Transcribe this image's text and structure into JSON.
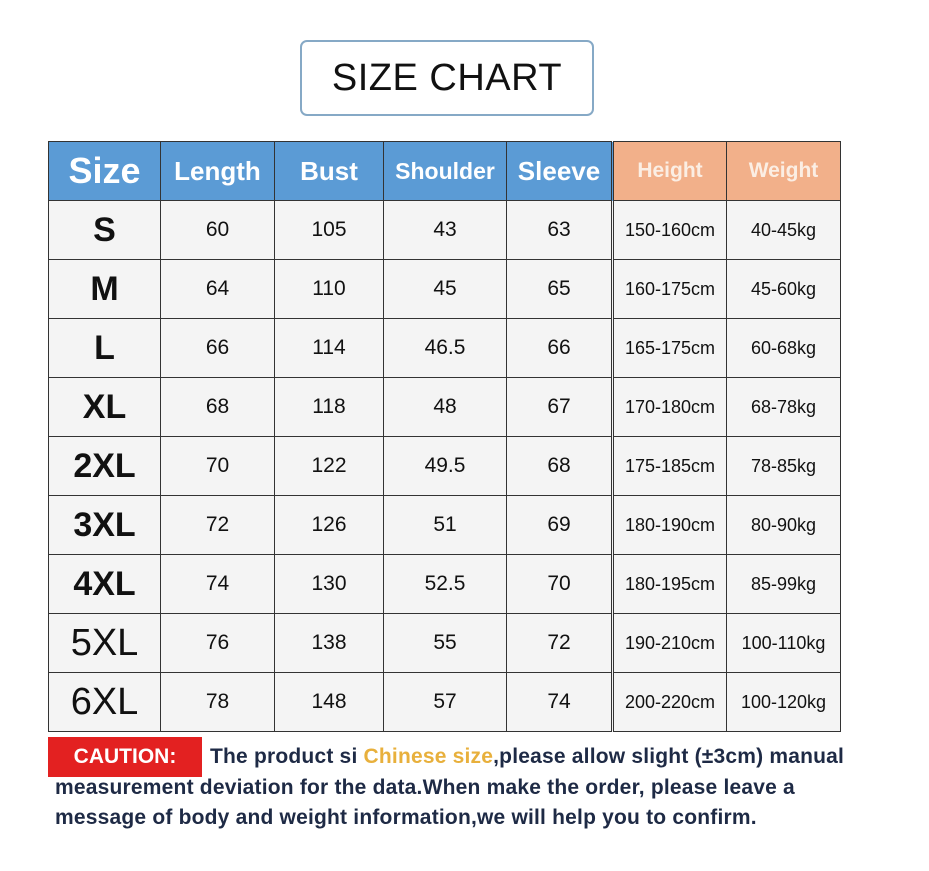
{
  "title": "SIZE CHART",
  "header": {
    "size": "Size",
    "length": "Length",
    "bust": "Bust",
    "shoulder": "Shoulder",
    "sleeve": "Sleeve",
    "height": "Height",
    "weight": "Weight"
  },
  "colors": {
    "header_blue": "#5b9bd5",
    "header_orange": "#f2b08a",
    "caution_red": "#e32121",
    "highlight": "#e8b03c"
  },
  "rows": [
    {
      "size": "S",
      "length": "60",
      "bust": "105",
      "shoulder": "43",
      "sleeve": "63",
      "height": "150-160cm",
      "weight": "40-45kg"
    },
    {
      "size": "M",
      "length": "64",
      "bust": "110",
      "shoulder": "45",
      "sleeve": "65",
      "height": "160-175cm",
      "weight": "45-60kg"
    },
    {
      "size": "L",
      "length": "66",
      "bust": "114",
      "shoulder": "46.5",
      "sleeve": "66",
      "height": "165-175cm",
      "weight": "60-68kg"
    },
    {
      "size": "XL",
      "length": "68",
      "bust": "118",
      "shoulder": "48",
      "sleeve": "67",
      "height": "170-180cm",
      "weight": "68-78kg"
    },
    {
      "size": "2XL",
      "length": "70",
      "bust": "122",
      "shoulder": "49.5",
      "sleeve": "68",
      "height": "175-185cm",
      "weight": "78-85kg"
    },
    {
      "size": "3XL",
      "length": "72",
      "bust": "126",
      "shoulder": "51",
      "sleeve": "69",
      "height": "180-190cm",
      "weight": "80-90kg"
    },
    {
      "size": "4XL",
      "length": "74",
      "bust": "130",
      "shoulder": "52.5",
      "sleeve": "70",
      "height": "180-195cm",
      "weight": "85-99kg"
    },
    {
      "size": "5XL",
      "length": "76",
      "bust": "138",
      "shoulder": "55",
      "sleeve": "72",
      "height": "190-210cm",
      "weight": "100-110kg"
    },
    {
      "size": "6XL",
      "length": "78",
      "bust": "148",
      "shoulder": "57",
      "sleeve": "74",
      "height": "200-220cm",
      "weight": "100-120kg"
    }
  ],
  "caution": {
    "label": "CAUTION:",
    "text_before": "The product si ",
    "highlight": "Chinese size",
    "text_after": ",please allow slight (±3cm) manual measurement deviation for the data.When make the order, please leave a message of body and weight information,we will help you to confirm."
  }
}
